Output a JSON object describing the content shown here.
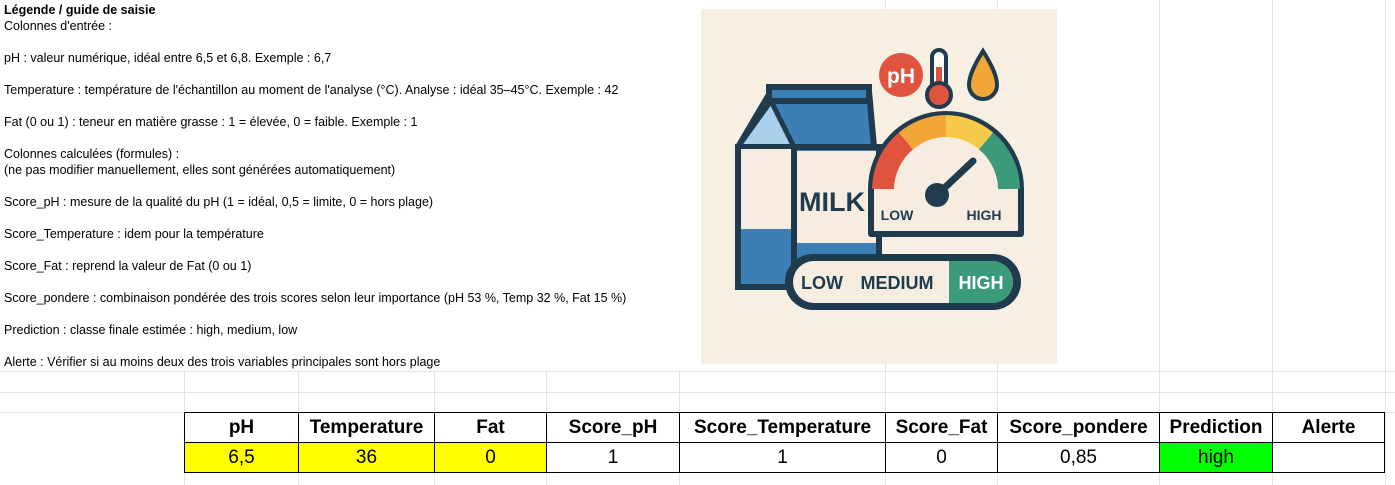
{
  "legend": {
    "title": "Légende / guide de saisie",
    "lines": [
      "Colonnes d'entrée :",
      "pH : valeur numérique, idéal entre 6,5 et 6,8. Exemple : 6,7",
      "Temperature : température de l'échantillon au moment de l'analyse (°C). Analyse : idéal 35–45°C. Exemple : 42",
      "Fat (0 ou 1) : teneur en matière grasse : 1 = élevée, 0 = faible. Exemple : 1",
      "Colonnes calculées (formules) :",
      "(ne pas modifier manuellement, elles sont générées automatiquement)",
      "Score_pH : mesure de la qualité du pH (1 = idéal, 0,5 = limite, 0 = hors plage)",
      "Score_Temperature : idem pour la température",
      "Score_Fat : reprend la valeur de Fat (0 ou 1)",
      "Score_pondere : combinaison pondérée des trois scores selon leur importance (pH 53 %, Temp 32 %, Fat 15 %)",
      "Prediction : classe finale estimée : high, medium, low",
      "Alerte : Vérifier si au moins deux des trois variables principales sont hors plage"
    ]
  },
  "illustration": {
    "ph_badge": "pH",
    "carton_label": "MILK",
    "gauge_low": "LOW",
    "gauge_high": "HIGH",
    "bar_low": "LOW",
    "bar_medium": "MEDIUM",
    "bar_high": "HIGH",
    "colors": {
      "background": "#f7f0e2",
      "blue": "#3b7fb4",
      "dark": "#1f3b4d",
      "red": "#e0533f",
      "orange": "#f2a638",
      "yellow": "#f7c948",
      "green": "#3a9a7a"
    }
  },
  "table": {
    "headers": [
      "pH",
      "Temperature",
      "Fat",
      "Score_pH",
      "Score_Temperature",
      "Score_Fat",
      "Score_pondere",
      "Prediction",
      "Alerte"
    ],
    "row": [
      "6,5",
      "36",
      "0",
      "1",
      "1",
      "0",
      "0,85",
      "high",
      ""
    ],
    "highlight_colors": {
      "input": "#ffff00",
      "prediction_high": "#00ff00"
    }
  }
}
